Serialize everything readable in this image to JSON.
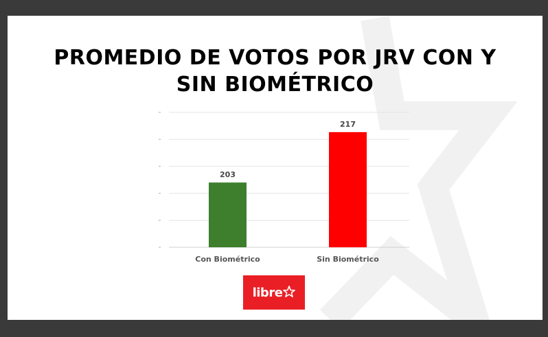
{
  "slide": {
    "title_line1": "PROMEDIO DE VOTOS POR JRV CON Y",
    "title_line2": "SIN BIOMÉTRICO"
  },
  "colors": {
    "background": "#3a3a3a",
    "slide": "#ffffff",
    "bar_con": "#3d7f2d",
    "bar_sin": "#ff0000",
    "logo": "#ea1f25"
  },
  "chart_data": {
    "type": "bar",
    "categories": [
      "Con Biométrico",
      "Sin Biométrico"
    ],
    "values": [
      203,
      217
    ],
    "colors": [
      "#3d7f2d",
      "#ff0000"
    ],
    "data_labels": [
      "203",
      "217"
    ],
    "ylim": [
      185,
      222.5
    ],
    "grid": true,
    "legend": "none",
    "xlabel": "",
    "ylabel": ""
  },
  "logo": {
    "text": "libre",
    "icon": "star-icon"
  }
}
